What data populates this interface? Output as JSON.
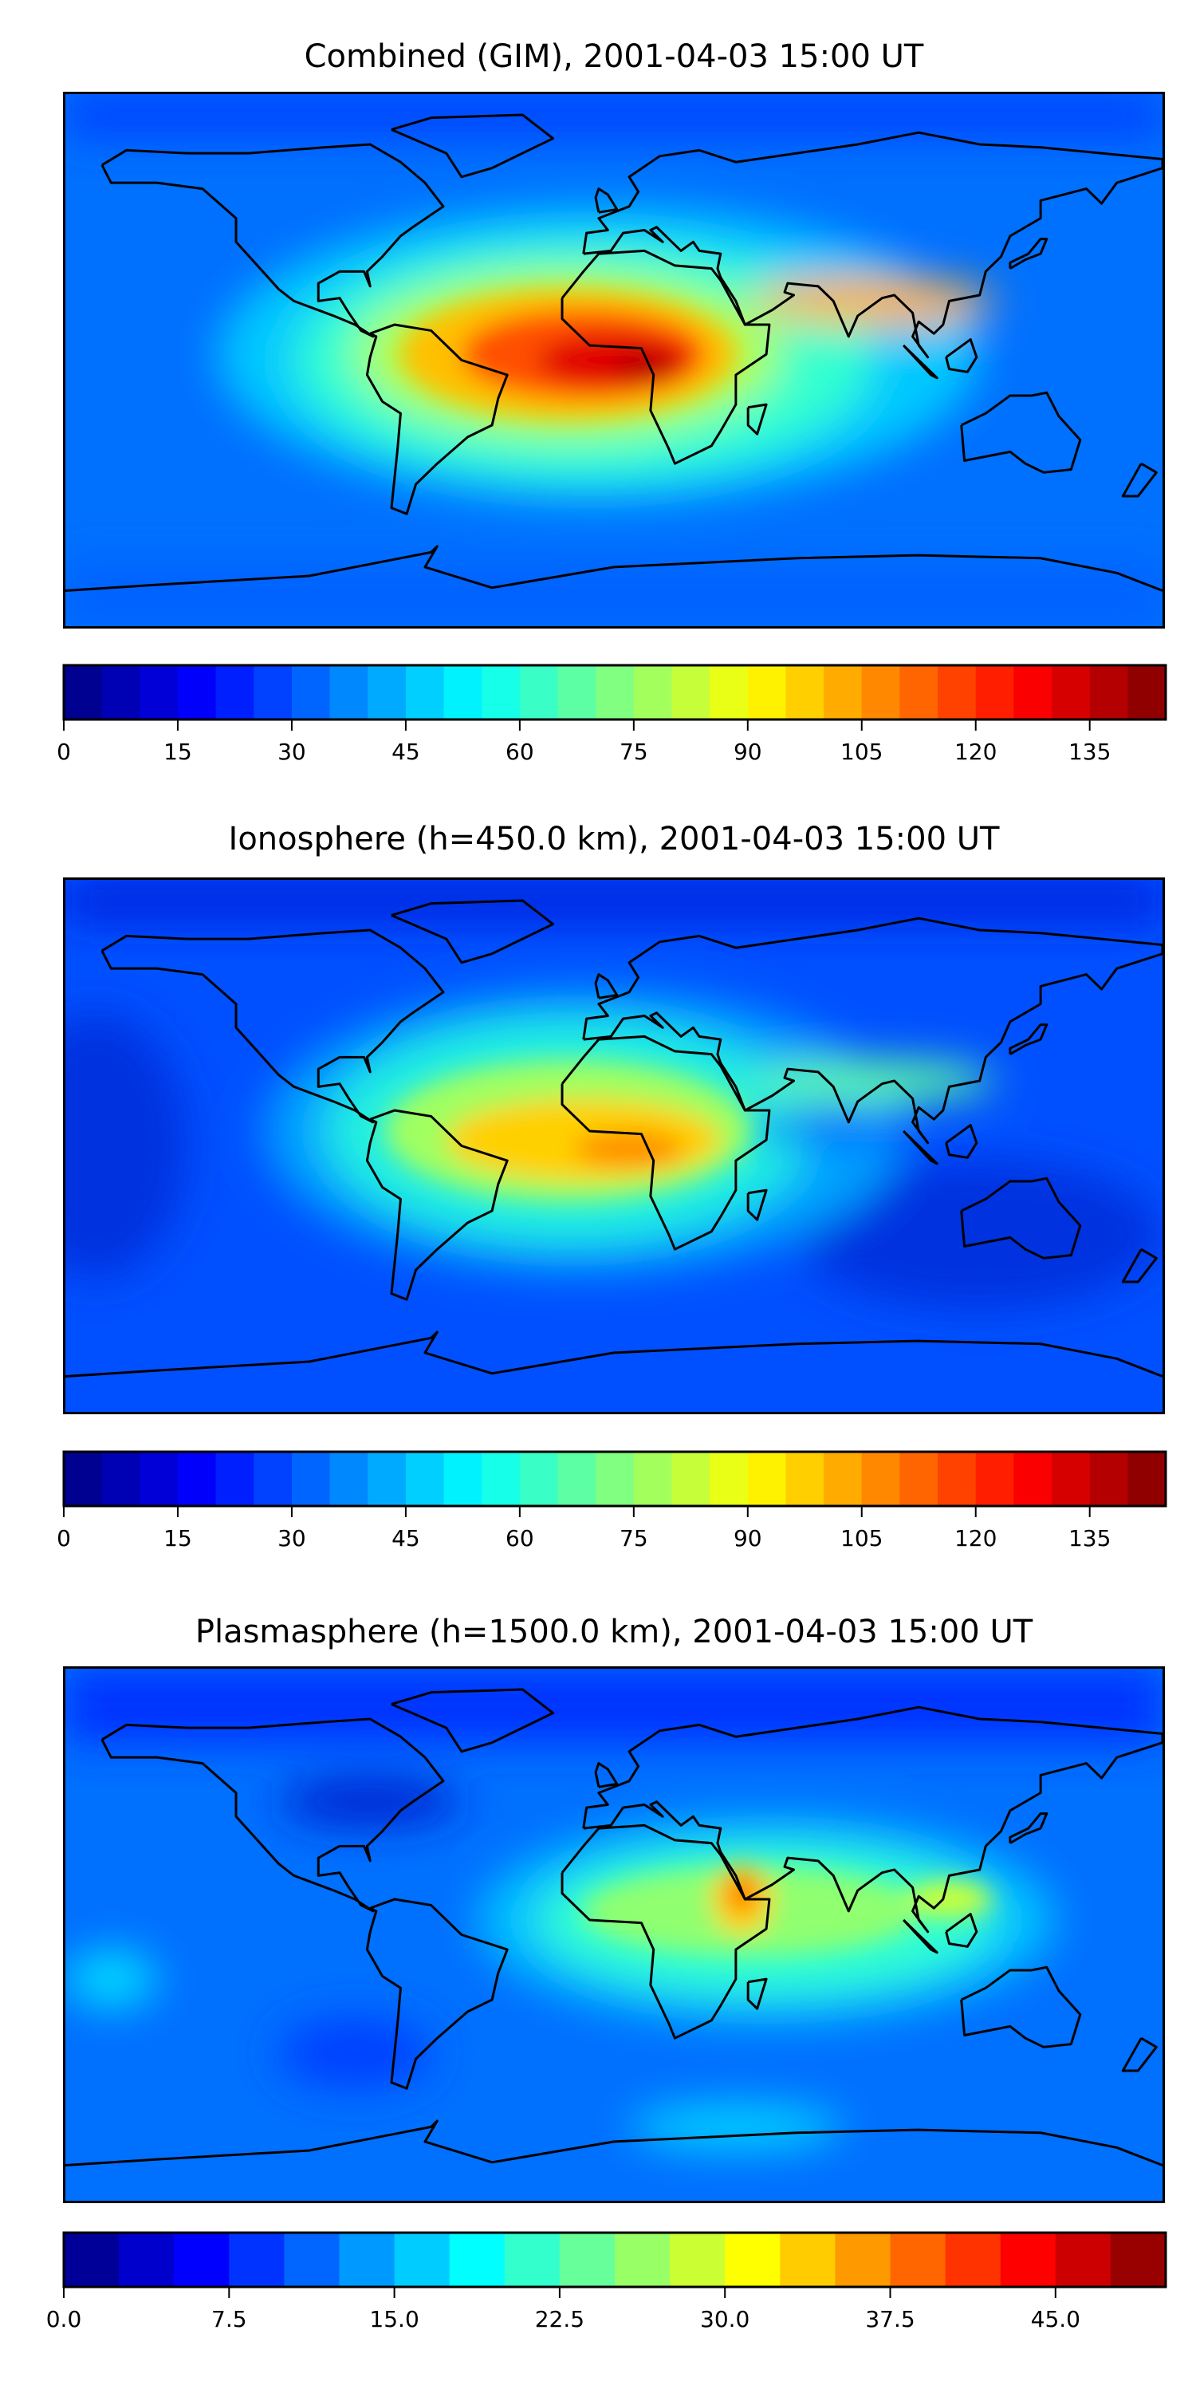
{
  "chart_data": [
    {
      "type": "heatmap",
      "title": "Combined (GIM), 2001-04-03 15:00 UT",
      "colormap": "jet",
      "colorbar": {
        "vmin": 0,
        "vmax": 145,
        "step": 5,
        "ticks": [
          0,
          15,
          30,
          45,
          60,
          75,
          90,
          105,
          120,
          135
        ],
        "tick_labels": [
          "0",
          "15",
          "30",
          "45",
          "60",
          "75",
          "90",
          "105",
          "120",
          "135"
        ]
      },
      "xlim": [
        -180,
        180
      ],
      "ylim": [
        -90,
        90
      ]
    },
    {
      "type": "heatmap",
      "title": "Ionosphere  (h=450.0 km), 2001-04-03 15:00 UT",
      "colormap": "jet",
      "colorbar": {
        "vmin": 0,
        "vmax": 145,
        "step": 5,
        "ticks": [
          0,
          15,
          30,
          45,
          60,
          75,
          90,
          105,
          120,
          135
        ],
        "tick_labels": [
          "0",
          "15",
          "30",
          "45",
          "60",
          "75",
          "90",
          "105",
          "120",
          "135"
        ]
      },
      "xlim": [
        -180,
        180
      ],
      "ylim": [
        -90,
        90
      ]
    },
    {
      "type": "heatmap",
      "title": "Plasmasphere (h=1500.0 km), 2001-04-03 15:00 UT",
      "colormap": "jet",
      "colorbar": {
        "vmin": 0,
        "vmax": 50,
        "step": 2.5,
        "ticks": [
          0,
          7.5,
          15,
          22.5,
          30,
          37.5,
          45
        ],
        "tick_labels": [
          "0.0",
          "7.5",
          "15.0",
          "22.5",
          "30.0",
          "37.5",
          "45.0"
        ]
      },
      "xlim": [
        -180,
        180
      ],
      "ylim": [
        -90,
        90
      ]
    }
  ]
}
